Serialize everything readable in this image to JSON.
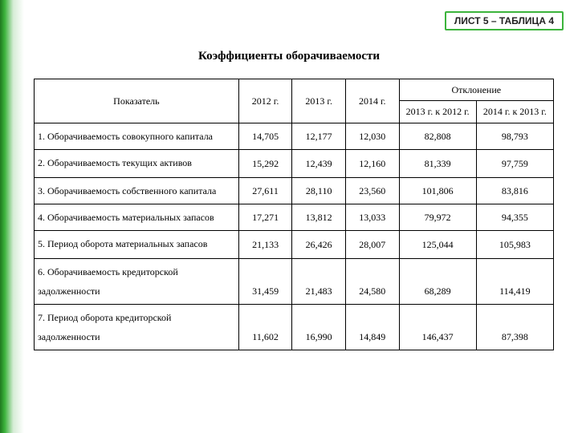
{
  "sheet_label": "ЛИСТ 5 – ТАБЛИЦА 4",
  "title": "Коэффициенты оборачиваемости",
  "header": {
    "indicator": "Показатель",
    "y2012": "2012 г.",
    "y2013": "2013 г.",
    "y2014": "2014 г.",
    "deviation": "Отклонение",
    "d1": "2013 г. к 2012 г.",
    "d2": "2014 г. к 2013 г."
  },
  "rows": [
    {
      "short": false,
      "ind": "1. Оборачиваемость совокупного капитала",
      "c": [
        "14,705",
        "12,177",
        "12,030",
        "82,808",
        "98,793"
      ]
    },
    {
      "short": true,
      "ind": "2. Оборачиваемость текущих активов",
      "c": [
        "15,292",
        "12,439",
        "12,160",
        "81,339",
        "97,759"
      ]
    },
    {
      "short": false,
      "ind": "3. Оборачиваемость собственного капитала",
      "c": [
        "27,611",
        "28,110",
        "23,560",
        "101,806",
        "83,816"
      ]
    },
    {
      "short": false,
      "ind": "4. Оборачиваемость материальных запасов",
      "c": [
        "17,271",
        "13,812",
        "13,033",
        "79,972",
        "94,355"
      ]
    },
    {
      "short": true,
      "ind": "5. Период оборота материальных запасов",
      "c": [
        "21,133",
        "26,426",
        "28,007",
        "125,044",
        "105,983"
      ]
    },
    {
      "short": false,
      "ind": "6. Оборачиваемость кредиторской задолженности",
      "c": [
        "31,459",
        "21,483",
        "24,580",
        "68,289",
        "114,419"
      ]
    },
    {
      "short": false,
      "ind": "7. Период оборота кредиторской задолженности",
      "c": [
        "11,602",
        "16,990",
        "14,849",
        "146,437",
        "87,398"
      ]
    }
  ],
  "colors": {
    "accent": "#3cb43c",
    "border": "#000000",
    "background": "#ffffff"
  }
}
